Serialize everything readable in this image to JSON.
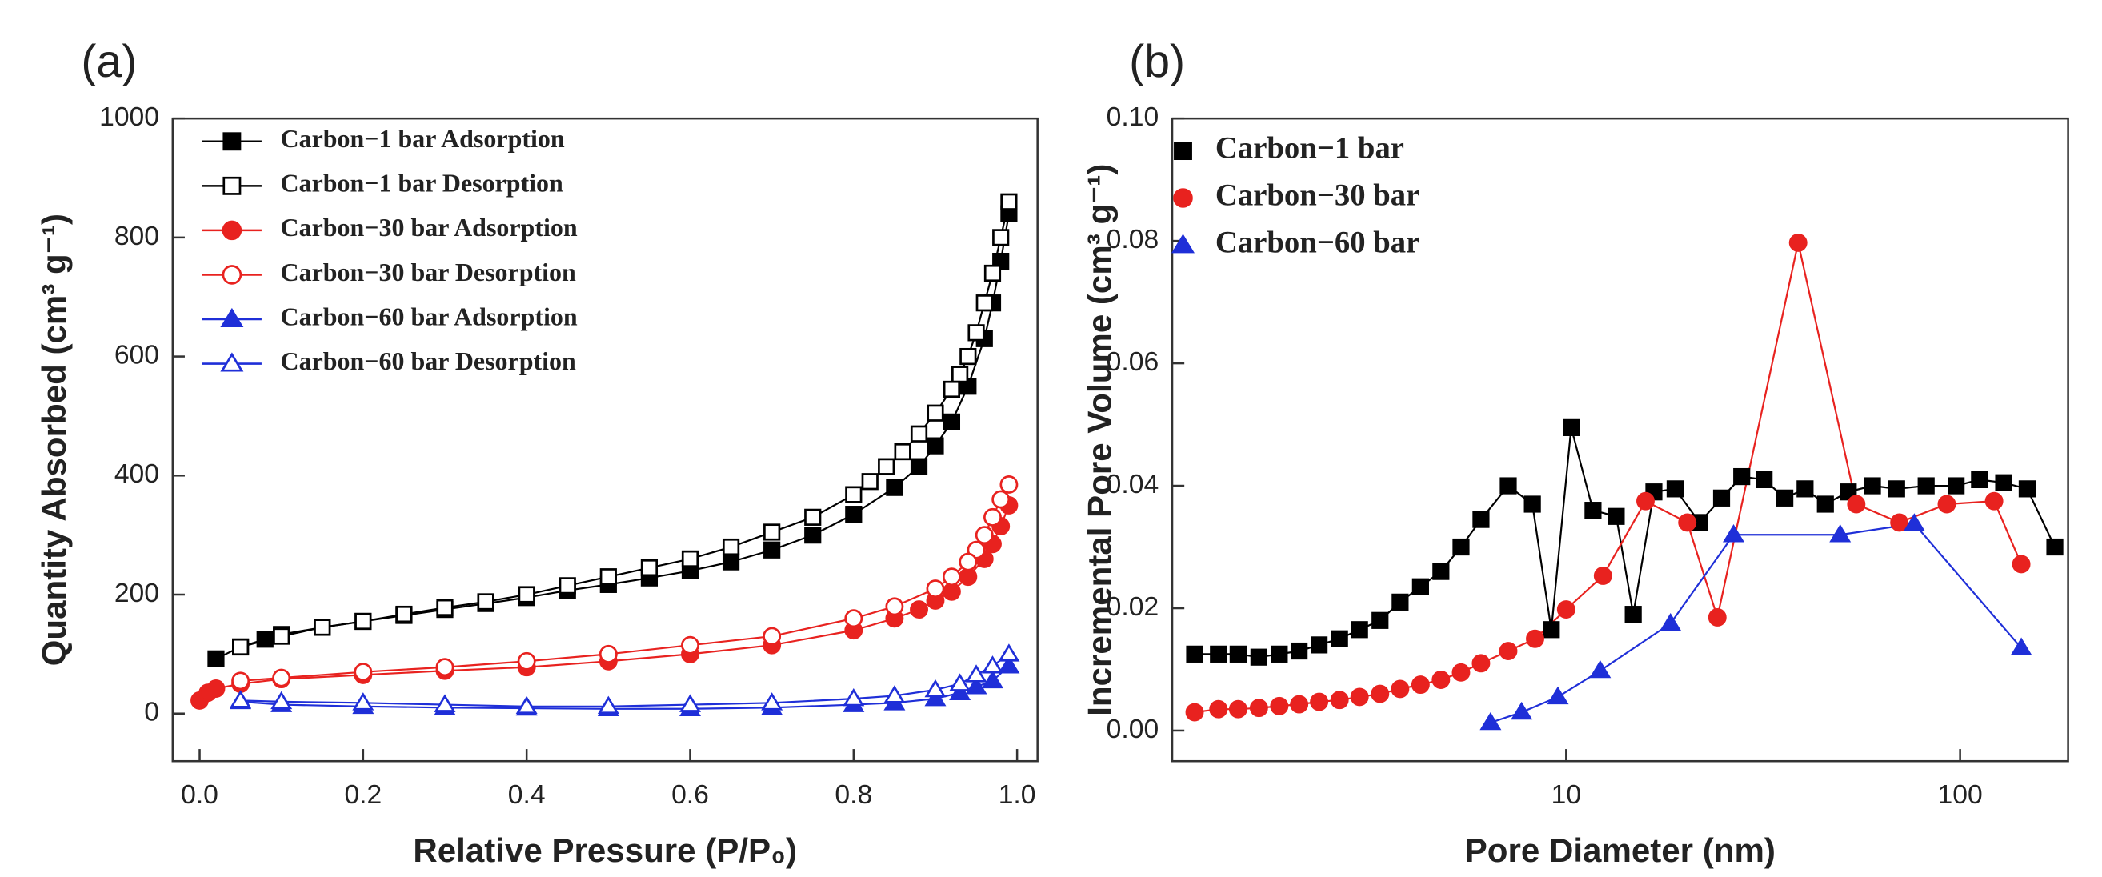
{
  "chart_data": [
    {
      "type": "line",
      "panel_label": "(a)",
      "xlabel": "Relative Pressure (P/P₀)",
      "ylabel": "Quantity Absorbed (cm³ g⁻¹)",
      "xlim": [
        -0.033,
        1.025
      ],
      "ylim": [
        -80,
        1000
      ],
      "xticks": [
        {
          "value": 0,
          "label": "0.0"
        },
        0.2,
        0.4,
        0.6,
        0.8,
        {
          "value": 1,
          "label": "1.0"
        }
      ],
      "yticks": [
        0,
        200,
        400,
        600,
        800,
        1000
      ],
      "series": [
        {
          "name": "Carbon−1 bar Adsorption",
          "color": "#000000",
          "marker": "square-filled",
          "x": [
            0.02,
            0.05,
            0.08,
            0.1,
            0.15,
            0.2,
            0.25,
            0.3,
            0.35,
            0.4,
            0.45,
            0.5,
            0.55,
            0.6,
            0.65,
            0.7,
            0.75,
            0.8,
            0.85,
            0.88,
            0.9,
            0.92,
            0.94,
            0.96,
            0.97,
            0.98,
            0.99
          ],
          "values": [
            92,
            112,
            125,
            133,
            145,
            155,
            165,
            175,
            185,
            195,
            207,
            217,
            228,
            240,
            255,
            275,
            300,
            335,
            380,
            415,
            450,
            490,
            550,
            630,
            690,
            760,
            840
          ]
        },
        {
          "name": "Carbon−1 bar Desorption",
          "color": "#000000",
          "marker": "square-open",
          "x": [
            0.99,
            0.98,
            0.97,
            0.96,
            0.95,
            0.94,
            0.93,
            0.92,
            0.9,
            0.88,
            0.86,
            0.84,
            0.82,
            0.8,
            0.75,
            0.7,
            0.65,
            0.6,
            0.55,
            0.5,
            0.45,
            0.4,
            0.35,
            0.3,
            0.25,
            0.2,
            0.15,
            0.1,
            0.05
          ],
          "values": [
            860,
            800,
            740,
            690,
            640,
            600,
            570,
            545,
            505,
            470,
            440,
            415,
            390,
            368,
            330,
            305,
            280,
            260,
            245,
            230,
            215,
            200,
            188,
            178,
            167,
            155,
            145,
            130,
            112
          ]
        },
        {
          "name": "Carbon−30 bar Adsorption",
          "color": "#e8221f",
          "marker": "circle-filled",
          "x": [
            0.0,
            0.01,
            0.02,
            0.05,
            0.1,
            0.2,
            0.3,
            0.4,
            0.5,
            0.6,
            0.7,
            0.8,
            0.85,
            0.88,
            0.9,
            0.92,
            0.94,
            0.96,
            0.97,
            0.98,
            0.99
          ],
          "values": [
            22,
            35,
            42,
            50,
            58,
            65,
            72,
            78,
            88,
            100,
            115,
            140,
            160,
            175,
            190,
            205,
            230,
            260,
            285,
            315,
            350
          ]
        },
        {
          "name": "Carbon−30 bar Desorption",
          "color": "#e8221f",
          "marker": "circle-open",
          "x": [
            0.99,
            0.98,
            0.97,
            0.96,
            0.95,
            0.94,
            0.92,
            0.9,
            0.85,
            0.8,
            0.7,
            0.6,
            0.5,
            0.4,
            0.3,
            0.2,
            0.1,
            0.05
          ],
          "values": [
            385,
            360,
            330,
            300,
            275,
            255,
            230,
            210,
            180,
            160,
            130,
            115,
            100,
            88,
            78,
            70,
            60,
            55
          ]
        },
        {
          "name": "Carbon−60 bar Adsorption",
          "color": "#1f2fd8",
          "marker": "triangle-filled",
          "x": [
            0.05,
            0.1,
            0.2,
            0.3,
            0.4,
            0.5,
            0.6,
            0.7,
            0.8,
            0.85,
            0.9,
            0.93,
            0.95,
            0.97,
            0.99
          ],
          "values": [
            20,
            15,
            12,
            10,
            9,
            8,
            8,
            10,
            15,
            18,
            25,
            35,
            45,
            55,
            80
          ]
        },
        {
          "name": "Carbon−60 bar Desorption",
          "color": "#1f2fd8",
          "marker": "triangle-open",
          "x": [
            0.99,
            0.97,
            0.95,
            0.93,
            0.9,
            0.85,
            0.8,
            0.7,
            0.6,
            0.5,
            0.4,
            0.3,
            0.2,
            0.1,
            0.05
          ],
          "values": [
            100,
            80,
            65,
            50,
            40,
            30,
            25,
            18,
            15,
            12,
            12,
            15,
            18,
            20,
            22
          ]
        }
      ]
    },
    {
      "type": "line",
      "panel_label": "(b)",
      "xlabel": "Pore Diameter (nm)",
      "ylabel": "Incremental Pore Volume (cm³ g⁻¹)",
      "xscale": "log",
      "xlim": [
        1,
        188
      ],
      "ylim": [
        -0.005,
        0.1
      ],
      "xticks": [
        10,
        100
      ],
      "yticks": [
        {
          "value": 0,
          "label": "0.00"
        },
        0.02,
        0.04,
        0.06,
        0.08,
        {
          "value": 0.1,
          "label": "0.10"
        }
      ],
      "series": [
        {
          "name": "Carbon−1 bar",
          "color": "#000000",
          "marker": "square-filled",
          "x": [
            1.14,
            1.31,
            1.47,
            1.66,
            1.87,
            2.1,
            2.36,
            2.66,
            2.99,
            3.37,
            3.79,
            4.27,
            4.81,
            5.41,
            6.08,
            7.13,
            8.21,
            9.17,
            10.3,
            11.7,
            13.4,
            14.8,
            16.7,
            18.9,
            21.8,
            24.8,
            27.9,
            31.8,
            35.9,
            40.4,
            45.5,
            52,
            59.9,
            69,
            82,
            97.7,
            112,
            129,
            148,
            174
          ],
          "values": [
            0.0125,
            0.0125,
            0.0125,
            0.012,
            0.0125,
            0.013,
            0.014,
            0.015,
            0.0165,
            0.018,
            0.021,
            0.0235,
            0.026,
            0.03,
            0.0345,
            0.04,
            0.037,
            0.0165,
            0.0495,
            0.036,
            0.035,
            0.019,
            0.039,
            0.0395,
            0.034,
            0.038,
            0.0415,
            0.041,
            0.038,
            0.0395,
            0.037,
            0.039,
            0.04,
            0.0395,
            0.04,
            0.04,
            0.041,
            0.0405,
            0.0395,
            0.03
          ]
        },
        {
          "name": "Carbon−30 bar",
          "color": "#e8221f",
          "marker": "circle-filled",
          "x": [
            1.14,
            1.31,
            1.47,
            1.66,
            1.87,
            2.1,
            2.36,
            2.66,
            2.99,
            3.37,
            3.79,
            4.27,
            4.81,
            5.41,
            6.08,
            7.13,
            8.34,
            10,
            12.4,
            15.9,
            20.3,
            24.2,
            38.8,
            54.5,
            70.1,
            92.5,
            122,
            143
          ],
          "values": [
            0.003,
            0.0035,
            0.0035,
            0.0037,
            0.004,
            0.0043,
            0.0047,
            0.005,
            0.0055,
            0.006,
            0.0068,
            0.0075,
            0.0083,
            0.0095,
            0.011,
            0.013,
            0.015,
            0.0198,
            0.0253,
            0.0375,
            0.034,
            0.0185,
            0.0797,
            0.037,
            0.034,
            0.037,
            0.0375,
            0.0272
          ]
        },
        {
          "name": "Carbon−60 bar",
          "color": "#1f2fd8",
          "marker": "triangle-filled",
          "x": [
            6.43,
            7.71,
            9.53,
            12.2,
            18.4,
            26.6,
            49.6,
            76.5,
            143
          ],
          "values": [
            0.0013,
            0.003,
            0.0055,
            0.0098,
            0.0175,
            0.032,
            0.032,
            0.0338,
            0.0135
          ]
        }
      ]
    }
  ]
}
